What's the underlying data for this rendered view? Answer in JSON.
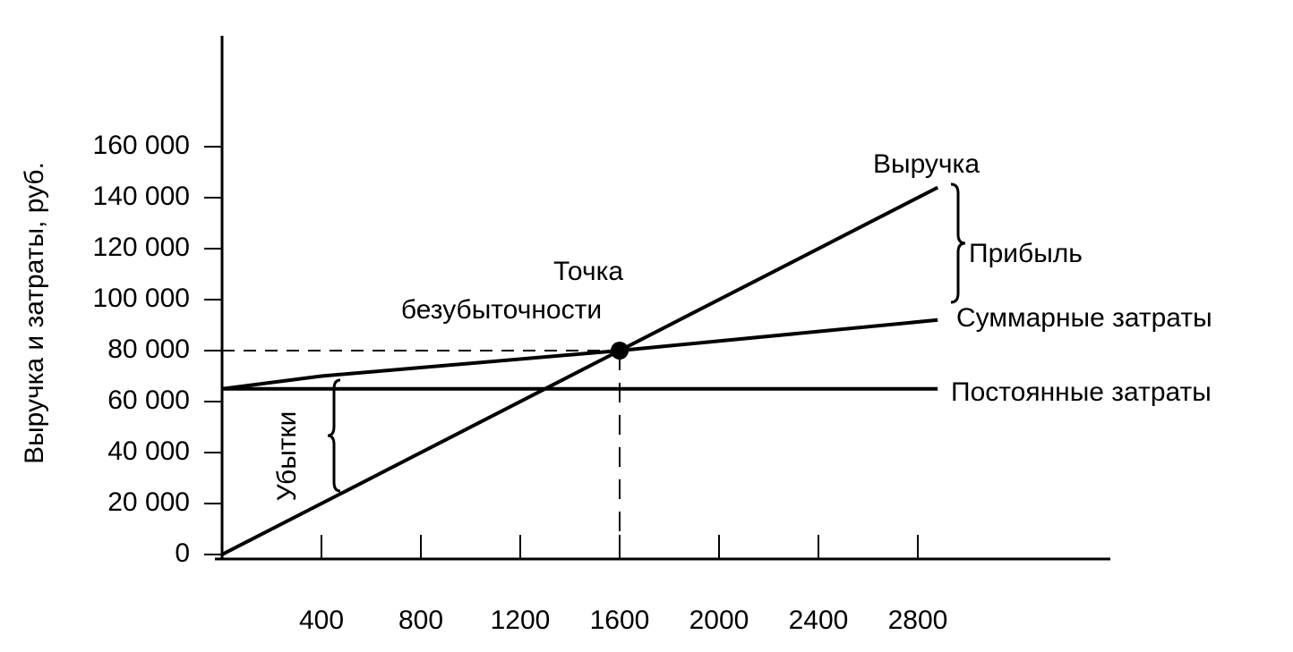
{
  "chart_data": {
    "type": "line",
    "y_label": "Выручка и затраты, руб.",
    "x": [
      0,
      400,
      1600,
      2880
    ],
    "series": [
      {
        "name": "Выручка",
        "color": "#000000",
        "values": [
          0,
          20000,
          80000,
          144000
        ]
      },
      {
        "name": "Суммарные затраты",
        "color": "#000000",
        "values": [
          65000,
          70000,
          80000,
          92000
        ]
      },
      {
        "name": "Постоянные затраты",
        "color": "#000000",
        "values": [
          65000,
          65000,
          65000,
          65000
        ]
      }
    ],
    "break_even": {
      "x": 1600,
      "y": 80000
    },
    "annotations": [
      "Прибыль",
      "Точка",
      "безубыточности",
      "Убытки"
    ],
    "xlim": [
      0,
      3600
    ],
    "ylim": [
      0,
      200000
    ],
    "xticks": [
      400,
      800,
      1200,
      1600,
      2000,
      2400,
      2800
    ],
    "yticks": [
      0,
      {
        "value": 20000,
        "label": "20 000"
      },
      {
        "value": 40000,
        "label": "40 000"
      },
      {
        "value": 60000,
        "label": "60 000"
      },
      {
        "value": 80000,
        "label": "80 000"
      },
      {
        "value": 100000,
        "label": "100 000"
      },
      {
        "value": 120000,
        "label": "120 000"
      },
      {
        "value": 140000,
        "label": "140 000"
      },
      {
        "value": 160000,
        "label": "160 000"
      }
    ],
    "grid": false
  }
}
